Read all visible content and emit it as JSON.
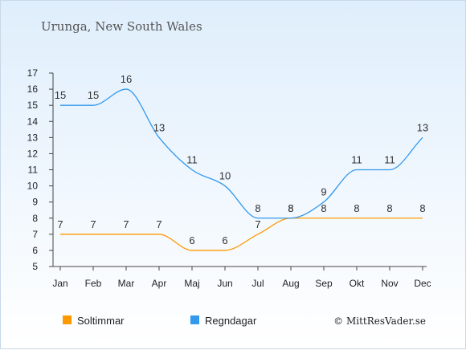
{
  "chart_data": {
    "type": "line",
    "title": "Urunga, New South Wales",
    "categories": [
      "Jan",
      "Feb",
      "Mar",
      "Apr",
      "Maj",
      "Jun",
      "Jul",
      "Aug",
      "Sep",
      "Okt",
      "Nov",
      "Dec"
    ],
    "series": [
      {
        "name": "Soltimmar",
        "color": "#ff9900",
        "values": [
          7,
          7,
          7,
          7,
          6,
          6,
          7,
          8,
          8,
          8,
          8,
          8
        ]
      },
      {
        "name": "Regndagar",
        "color": "#3399ee",
        "values": [
          15,
          15,
          16,
          13,
          11,
          10,
          8,
          8,
          9,
          11,
          11,
          13
        ]
      }
    ],
    "ylim": [
      5,
      17
    ],
    "yticks": [
      5,
      6,
      7,
      8,
      9,
      10,
      11,
      12,
      13,
      14,
      15,
      16,
      17
    ],
    "grid": false,
    "legend": "bottom-left"
  },
  "credit": "© MittResVader.se"
}
